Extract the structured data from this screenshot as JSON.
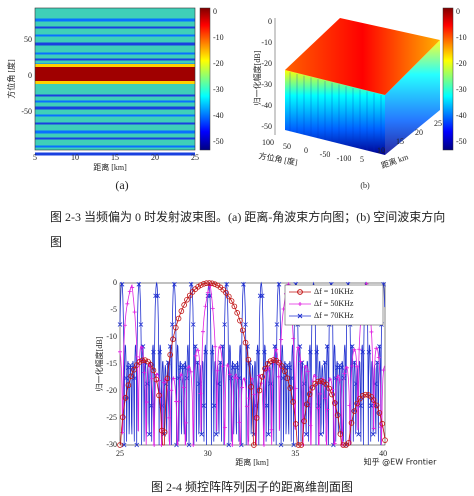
{
  "figure_a": {
    "x_label": "距离 [km]",
    "y_label": "方位角 [度]",
    "x_ticks": [
      5,
      10,
      15,
      20,
      25
    ],
    "y_ticks": [
      50,
      0,
      -50
    ],
    "colorbar_ticks": [
      0,
      -10,
      -20,
      -30,
      -40,
      -50
    ],
    "panel_label": "(a)"
  },
  "figure_b": {
    "z_label": "归一化幅度[dB]",
    "z_ticks": [
      0,
      -10,
      -20,
      -30,
      -40,
      -50
    ],
    "azimuth_label": "方位角 [度]",
    "azimuth_ticks": [
      100,
      50,
      0,
      -50,
      -100
    ],
    "range_label": "距离 km",
    "range_ticks": [
      5,
      10,
      15,
      20,
      25
    ],
    "colorbar_ticks": [
      0,
      -10,
      -20,
      -30,
      -40,
      -50
    ],
    "panel_label": "(b)"
  },
  "caption_2_3": [
    "图 2-3 当频偏为 0 时发射波束图。(a) 距离-角波束方向图；(b) 空间波束方向",
    "图"
  ],
  "figure_c": {
    "x_label": "距离 [km]",
    "y_label": "归一化幅度[dB]",
    "x_ticks": [
      25,
      30,
      35,
      40
    ],
    "y_ticks": [
      0,
      -5,
      -10,
      -15,
      -20,
      -25,
      -30
    ],
    "legend": [
      "Δf = 10KHz",
      "Δf = 50KHz",
      "Δf = 70KHz"
    ]
  },
  "caption_2_4": "图 2-4 频控阵阵列因子的距离维剖面图",
  "watermark": "知乎 @EW Frontier"
}
